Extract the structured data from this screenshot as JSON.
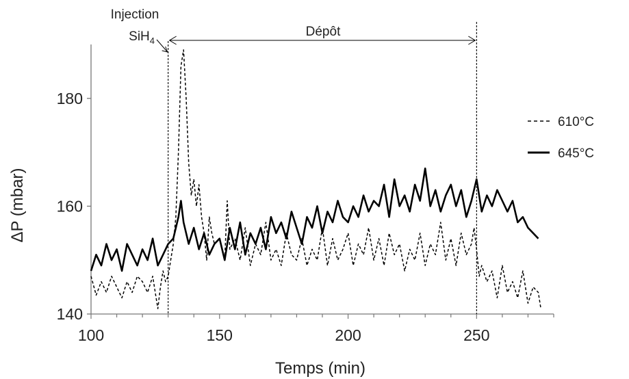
{
  "chart_data": {
    "type": "line",
    "title": "",
    "xlabel": "Temps  (min)",
    "ylabel": "ΔP (mbar)",
    "xlim": [
      100,
      280
    ],
    "ylim": [
      140,
      190
    ],
    "xticks": [
      100,
      150,
      200,
      250
    ],
    "yticks": [
      140,
      160,
      180
    ],
    "grid": false,
    "legend": {
      "position": "right",
      "entries": [
        "610°C",
        "645°C"
      ]
    },
    "annotations": {
      "injection_line1": "Injection",
      "injection_line2_main": "SiH",
      "injection_line2_sub": "4",
      "depot": "Dépôt",
      "injection_x": 130,
      "depot_start": 130,
      "depot_end": 250
    },
    "series": [
      {
        "name": "610°C",
        "style": "dashed",
        "color": "#000000",
        "x": [
          100,
          102,
          104,
          106,
          108,
          110,
          112,
          114,
          116,
          118,
          120,
          122,
          124,
          126,
          127,
          128,
          129,
          130,
          131,
          132,
          133,
          134,
          135,
          136,
          137,
          138,
          139,
          140,
          141,
          142,
          143,
          144,
          145,
          146,
          147,
          148,
          150,
          152,
          153,
          154,
          156,
          158,
          160,
          162,
          164,
          166,
          168,
          170,
          172,
          174,
          176,
          178,
          180,
          182,
          184,
          186,
          188,
          190,
          192,
          194,
          196,
          198,
          200,
          202,
          204,
          206,
          208,
          210,
          212,
          214,
          216,
          218,
          220,
          222,
          224,
          226,
          228,
          230,
          232,
          234,
          236,
          238,
          240,
          242,
          244,
          246,
          248,
          249,
          250,
          251,
          252,
          254,
          256,
          258,
          260,
          262,
          264,
          266,
          268,
          270,
          272,
          274,
          275
        ],
        "y": [
          147,
          143.5,
          146,
          144,
          147,
          145,
          143,
          146,
          144,
          147,
          146,
          144,
          147,
          141,
          145,
          148,
          146,
          147,
          150,
          153,
          158,
          170,
          186,
          189,
          180,
          168,
          162,
          165,
          160,
          164,
          158,
          155,
          150,
          158,
          155,
          153,
          154,
          150,
          161,
          152,
          154,
          150,
          156,
          149,
          153,
          151,
          157,
          150,
          152,
          149,
          155,
          151,
          150,
          154,
          149,
          152,
          150,
          156,
          149,
          154,
          150,
          152,
          155,
          149,
          153,
          151,
          156,
          150,
          154,
          149,
          155,
          151,
          153,
          148,
          152,
          150,
          155,
          149,
          153,
          151,
          157,
          150,
          154,
          149,
          155,
          151,
          153,
          156,
          152,
          147,
          149,
          146,
          148,
          143,
          149,
          144,
          146,
          143,
          148,
          142,
          145,
          144,
          141
        ]
      },
      {
        "name": "645°C",
        "style": "solid",
        "color": "#000000",
        "x": [
          100,
          102,
          104,
          106,
          108,
          110,
          112,
          114,
          116,
          118,
          120,
          122,
          124,
          126,
          128,
          130,
          132,
          134,
          135,
          136,
          138,
          140,
          142,
          144,
          146,
          148,
          150,
          152,
          154,
          156,
          158,
          160,
          162,
          164,
          166,
          168,
          170,
          172,
          174,
          176,
          178,
          180,
          182,
          184,
          186,
          188,
          190,
          192,
          194,
          196,
          198,
          200,
          202,
          204,
          206,
          208,
          210,
          212,
          214,
          216,
          218,
          220,
          222,
          224,
          226,
          228,
          230,
          232,
          234,
          236,
          238,
          240,
          242,
          244,
          246,
          248,
          250,
          252,
          254,
          256,
          258,
          260,
          262,
          264,
          266,
          268,
          270,
          272,
          274
        ],
        "y": [
          148,
          151,
          149,
          153,
          150,
          152,
          148,
          153,
          151,
          149,
          152,
          150,
          154,
          149,
          151,
          153,
          154,
          158,
          161,
          157,
          153,
          156,
          152,
          155,
          151,
          153,
          154,
          150,
          156,
          152,
          157,
          151,
          155,
          153,
          156,
          152,
          158,
          155,
          157,
          154,
          159,
          156,
          153,
          158,
          156,
          160,
          155,
          159,
          157,
          161,
          158,
          157,
          160,
          158,
          162,
          159,
          161,
          160,
          164,
          158,
          165,
          160,
          162,
          159,
          164,
          161,
          167,
          160,
          163,
          159,
          162,
          164,
          160,
          163,
          158,
          161,
          165,
          159,
          162,
          160,
          163,
          161,
          159,
          161,
          157,
          158,
          156,
          155,
          154
        ]
      }
    ]
  }
}
